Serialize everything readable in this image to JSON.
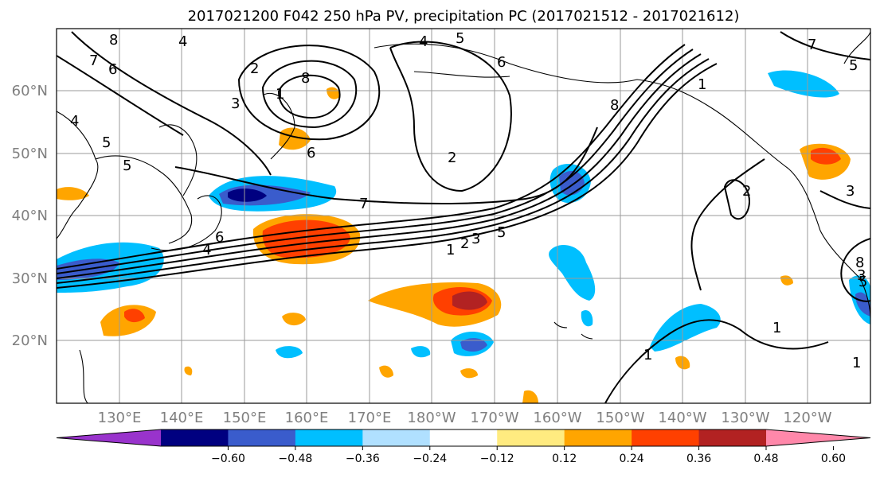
{
  "title": "2017021200 F042 250 hPa PV, precipitation PC (2017021512 - 2017021612)",
  "lat_labels": [
    "20°N",
    "30°N",
    "40°N",
    "50°N",
    "60°N"
  ],
  "lon_labels": [
    "130°E",
    "140°E",
    "150°E",
    "160°E",
    "170°E",
    "180°W",
    "170°W",
    "160°W",
    "150°W",
    "140°W",
    "130°W",
    "120°W"
  ],
  "colorbar": {
    "ticks": [
      "−0.60",
      "−0.48",
      "−0.36",
      "−0.24",
      "−0.12",
      "0.12",
      "0.24",
      "0.36",
      "0.48",
      "0.60"
    ],
    "colors": [
      "#9933cc",
      "#000080",
      "#3a5ccc",
      "#00bfff",
      "#b0e0ff",
      "#ffffff",
      "#ffeb80",
      "#ffa500",
      "#ff4000",
      "#b22222",
      "#ff88aa"
    ]
  },
  "map": {
    "lon_range": [
      "120°E",
      "110°W"
    ],
    "lat_range": [
      "10°N",
      "70°N"
    ],
    "grid": true
  },
  "contour_labels": [
    "8",
    "7",
    "6",
    "4",
    "2",
    "3",
    "5",
    "4",
    "1",
    "8",
    "6",
    "5",
    "7",
    "4",
    "6",
    "5",
    "2",
    "1",
    "1",
    "3",
    "2",
    "6",
    "4",
    "5",
    "3",
    "7",
    "8",
    "5",
    "1",
    "1",
    "3",
    "2",
    "8",
    "5",
    "1"
  ]
}
